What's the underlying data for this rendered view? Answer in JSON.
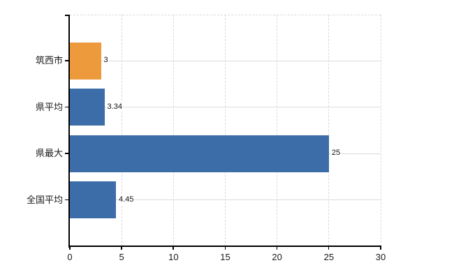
{
  "chart_data": {
    "type": "bar",
    "orientation": "horizontal",
    "title": "",
    "xlabel": "",
    "ylabel": "",
    "categories": [
      "筑西市",
      "県平均",
      "県最大",
      "全国平均"
    ],
    "values": [
      3,
      3.34,
      25,
      4.45
    ],
    "value_labels": [
      "3",
      "3.34",
      "25",
      "4.45"
    ],
    "bar_colors": [
      "#ec9a3c",
      "#3d6da8",
      "#3d6da8",
      "#3d6da8"
    ],
    "xlim": [
      0,
      30
    ],
    "x_ticks": [
      0,
      5,
      10,
      15,
      20,
      25,
      30
    ],
    "x_tick_labels": [
      "0",
      "5",
      "10",
      "15",
      "20",
      "25",
      "30"
    ],
    "grid": true,
    "legend": false,
    "colors": {
      "bar_blue": "#3d6da8",
      "bar_orange": "#ec9a3c",
      "axis": "#000000",
      "gridline_horizontal": "#dcdcdc",
      "gridline_vertical": "#d9d9d9",
      "border_dashed": "#d9d9d9",
      "text": "#1a1a1a",
      "background": "#ffffff"
    }
  }
}
